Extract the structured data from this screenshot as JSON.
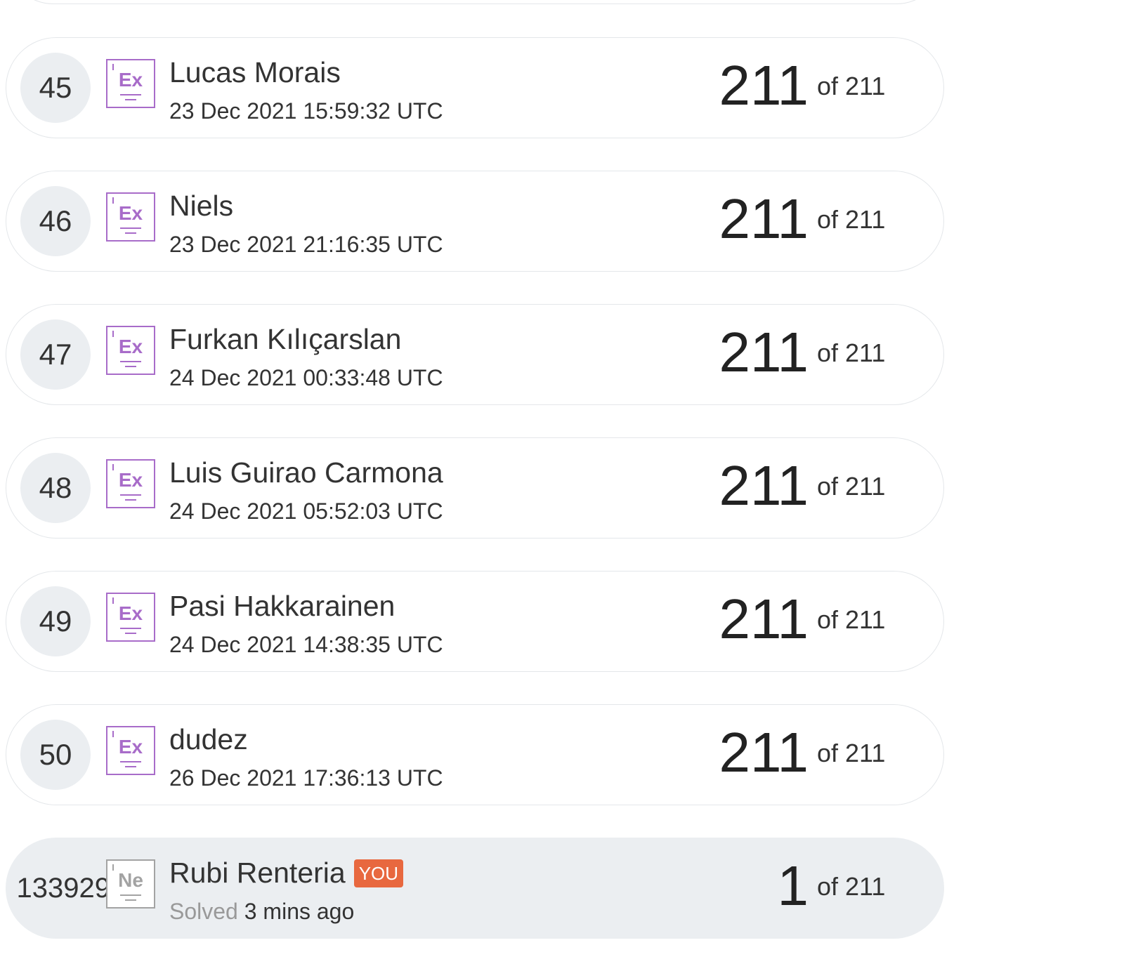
{
  "leaderboard": {
    "rows": [
      {
        "rank": "45",
        "badge": "Ex",
        "name": "Lucas Morais",
        "date": "23 Dec 2021 15:59:32 UTC",
        "score": "211",
        "of": "of 211"
      },
      {
        "rank": "46",
        "badge": "Ex",
        "name": "Niels",
        "date": "23 Dec 2021 21:16:35 UTC",
        "score": "211",
        "of": "of 211"
      },
      {
        "rank": "47",
        "badge": "Ex",
        "name": "Furkan Kılıçarslan",
        "date": "24 Dec 2021 00:33:48 UTC",
        "score": "211",
        "of": "of 211"
      },
      {
        "rank": "48",
        "badge": "Ex",
        "name": "Luis Guirao Carmona",
        "date": "24 Dec 2021 05:52:03 UTC",
        "score": "211",
        "of": "of 211"
      },
      {
        "rank": "49",
        "badge": "Ex",
        "name": "Pasi Hakkarainen",
        "date": "24 Dec 2021 14:38:35 UTC",
        "score": "211",
        "of": "of 211"
      },
      {
        "rank": "50",
        "badge": "Ex",
        "name": "dudez",
        "date": "26 Dec 2021 17:36:13 UTC",
        "score": "211",
        "of": "of 211"
      }
    ],
    "current_user": {
      "rank": "133929",
      "badge": "Ne",
      "name": "Rubi Renteria",
      "you_tag": "YOU",
      "solved_label": "Solved",
      "solved_time": "3 mins ago",
      "score": "1",
      "of": "of 211"
    }
  },
  "colors": {
    "expert_badge": "#a86cc9",
    "newbie_badge": "#a3a3a3",
    "you_tag": "#e8683f",
    "highlight_row": "#ebeef1"
  }
}
